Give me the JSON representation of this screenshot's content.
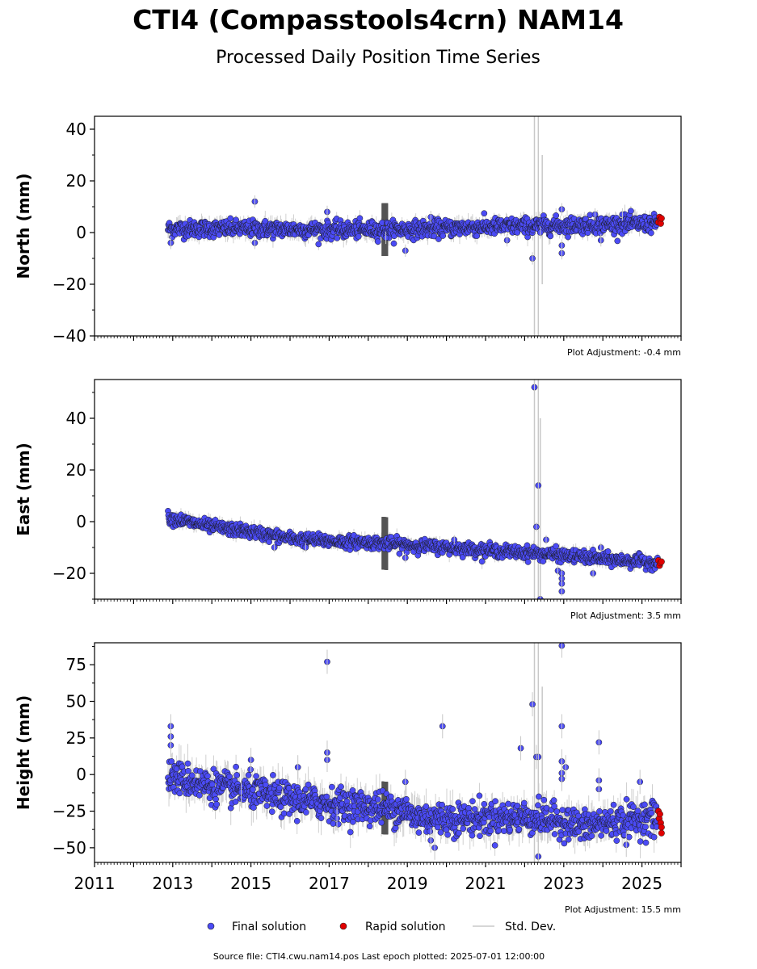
{
  "title": "CTI4 (Compasstools4crn) NAM14",
  "subtitle": "Processed Daily Position Time Series",
  "footer": "Source file: CTI4.cwu.nam14.pos  Last epoch plotted: 2025-07-01 12:00:00",
  "legend": {
    "final": "Final solution",
    "rapid": "Rapid solution",
    "stddev": "Std. Dev."
  },
  "colors": {
    "final": "#4b4bf5",
    "rapid": "#e00000",
    "stddev": "#bdbdbd"
  },
  "chart_data": [
    {
      "type": "scatter",
      "ylabel": "North (mm)",
      "adjustment": "Plot Adjustment: -0.4 mm",
      "xlim": [
        2011,
        2026
      ],
      "ylim": [
        -40,
        45
      ],
      "yticks": [
        -40,
        -20,
        0,
        20,
        40
      ],
      "ytick_labels": [
        "−40",
        "−20",
        "0",
        "20",
        "40"
      ],
      "trend": [
        [
          2012.9,
          1.5
        ],
        [
          2015,
          1.5
        ],
        [
          2017,
          1.0
        ],
        [
          2019,
          1.2
        ],
        [
          2021,
          2.2
        ],
        [
          2023,
          2.8
        ],
        [
          2025.45,
          3.5
        ]
      ],
      "noise": 1.6,
      "outliers": [
        [
          2012.95,
          -4
        ],
        [
          2015.1,
          12
        ],
        [
          2015.1,
          -4
        ],
        [
          2016.95,
          8
        ],
        [
          2018.45,
          -2
        ],
        [
          2018.95,
          -7
        ],
        [
          2019.6,
          6
        ],
        [
          2021.55,
          -3
        ],
        [
          2022.2,
          -10
        ],
        [
          2022.4,
          0
        ],
        [
          2022.95,
          -5
        ],
        [
          2022.95,
          -8
        ],
        [
          2022.95,
          9
        ],
        [
          2023.8,
          7
        ],
        [
          2023.95,
          -3
        ],
        [
          2024.5,
          7
        ]
      ],
      "gap_band": [
        2018.35,
        2018.5
      ],
      "spikes": [
        [
          2022.25,
          -40,
          45
        ],
        [
          2022.35,
          -40,
          45
        ],
        [
          2022.45,
          -20,
          30
        ]
      ],
      "rapid": [
        [
          2025.42,
          4
        ],
        [
          2025.45,
          6
        ],
        [
          2025.47,
          5
        ],
        [
          2025.48,
          3.5
        ],
        [
          2025.5,
          5.5
        ]
      ]
    },
    {
      "type": "scatter",
      "ylabel": "East (mm)",
      "adjustment": "Plot Adjustment: 3.5 mm",
      "xlim": [
        2011,
        2026
      ],
      "ylim": [
        -30,
        55
      ],
      "yticks": [
        -20,
        0,
        20,
        40
      ],
      "ytick_labels": [
        "−20",
        "0",
        "20",
        "40"
      ],
      "trend": [
        [
          2012.9,
          1.5
        ],
        [
          2014,
          -2
        ],
        [
          2015,
          -4
        ],
        [
          2016,
          -6.5
        ],
        [
          2017,
          -7.5
        ],
        [
          2018,
          -8
        ],
        [
          2019,
          -9
        ],
        [
          2020,
          -10
        ],
        [
          2021,
          -11
        ],
        [
          2022,
          -12
        ],
        [
          2023,
          -13
        ],
        [
          2024,
          -14.5
        ],
        [
          2025.45,
          -16
        ]
      ],
      "noise": 1.2,
      "outliers": [
        [
          2015.6,
          -10
        ],
        [
          2016.4,
          -10
        ],
        [
          2018.95,
          -14
        ],
        [
          2020.2,
          -7
        ],
        [
          2022.25,
          52
        ],
        [
          2022.35,
          14
        ],
        [
          2022.3,
          -2
        ],
        [
          2022.55,
          -7
        ],
        [
          2022.85,
          -19
        ],
        [
          2022.95,
          -20
        ],
        [
          2022.95,
          -22
        ],
        [
          2022.95,
          -24
        ],
        [
          2022.95,
          -27
        ],
        [
          2022.4,
          -30
        ],
        [
          2023.75,
          -20
        ],
        [
          2023.95,
          -10
        ]
      ],
      "gap_band": [
        2018.35,
        2018.5
      ],
      "spikes": [
        [
          2022.25,
          -30,
          55
        ],
        [
          2022.35,
          -30,
          55
        ],
        [
          2022.4,
          -30,
          40
        ]
      ],
      "rapid": [
        [
          2025.42,
          -15
        ],
        [
          2025.45,
          -17
        ],
        [
          2025.47,
          -16
        ],
        [
          2025.5,
          -15.5
        ]
      ]
    },
    {
      "type": "scatter",
      "ylabel": "Height (mm)",
      "adjustment": "Plot Adjustment: 15.5 mm",
      "xlim": [
        2011,
        2026
      ],
      "ylim": [
        -60,
        90
      ],
      "yticks": [
        -50,
        -25,
        0,
        25,
        50,
        75
      ],
      "ytick_labels": [
        "−50",
        "−25",
        "0",
        "25",
        "50",
        "75"
      ],
      "xticks": [
        2011,
        2013,
        2015,
        2017,
        2019,
        2021,
        2023,
        2025
      ],
      "trend": [
        [
          2012.9,
          -1
        ],
        [
          2014,
          -8
        ],
        [
          2015,
          -12
        ],
        [
          2016,
          -17
        ],
        [
          2017,
          -20
        ],
        [
          2018,
          -22
        ],
        [
          2019,
          -24
        ],
        [
          2019.05,
          -29
        ],
        [
          2020,
          -30
        ],
        [
          2021,
          -30
        ],
        [
          2022,
          -29
        ],
        [
          2023,
          -32
        ],
        [
          2023.5,
          -36
        ],
        [
          2024,
          -33
        ],
        [
          2025.45,
          -29
        ]
      ],
      "noise": 5.5,
      "outliers": [
        [
          2012.95,
          33
        ],
        [
          2012.95,
          26
        ],
        [
          2012.95,
          20
        ],
        [
          2014.75,
          -12
        ],
        [
          2015,
          10
        ],
        [
          2016.2,
          5
        ],
        [
          2016.95,
          77
        ],
        [
          2016.95,
          15
        ],
        [
          2016.95,
          10
        ],
        [
          2017.2,
          -30
        ],
        [
          2018.95,
          -5
        ],
        [
          2019.9,
          33
        ],
        [
          2019.6,
          -45
        ],
        [
          2019.7,
          -50
        ],
        [
          2021.9,
          18
        ],
        [
          2022.2,
          48
        ],
        [
          2022.3,
          12
        ],
        [
          2022.35,
          12
        ],
        [
          2022.35,
          -56
        ],
        [
          2022.95,
          88
        ],
        [
          2022.95,
          33
        ],
        [
          2022.95,
          9
        ],
        [
          2023.05,
          5
        ],
        [
          2022.95,
          1
        ],
        [
          2022.95,
          -3
        ],
        [
          2023.9,
          22
        ],
        [
          2023.9,
          -4
        ],
        [
          2023.9,
          -10
        ],
        [
          2024.6,
          -48
        ],
        [
          2024.95,
          -5
        ]
      ],
      "gap_band": [
        2018.35,
        2018.5
      ],
      "spikes": [
        [
          2022.25,
          -60,
          90
        ],
        [
          2022.35,
          -60,
          90
        ],
        [
          2022.45,
          -45,
          60
        ]
      ],
      "rapid": [
        [
          2025.42,
          -25
        ],
        [
          2025.44,
          -30
        ],
        [
          2025.46,
          -27
        ],
        [
          2025.48,
          -33
        ],
        [
          2025.5,
          -36
        ],
        [
          2025.5,
          -40
        ]
      ]
    }
  ]
}
